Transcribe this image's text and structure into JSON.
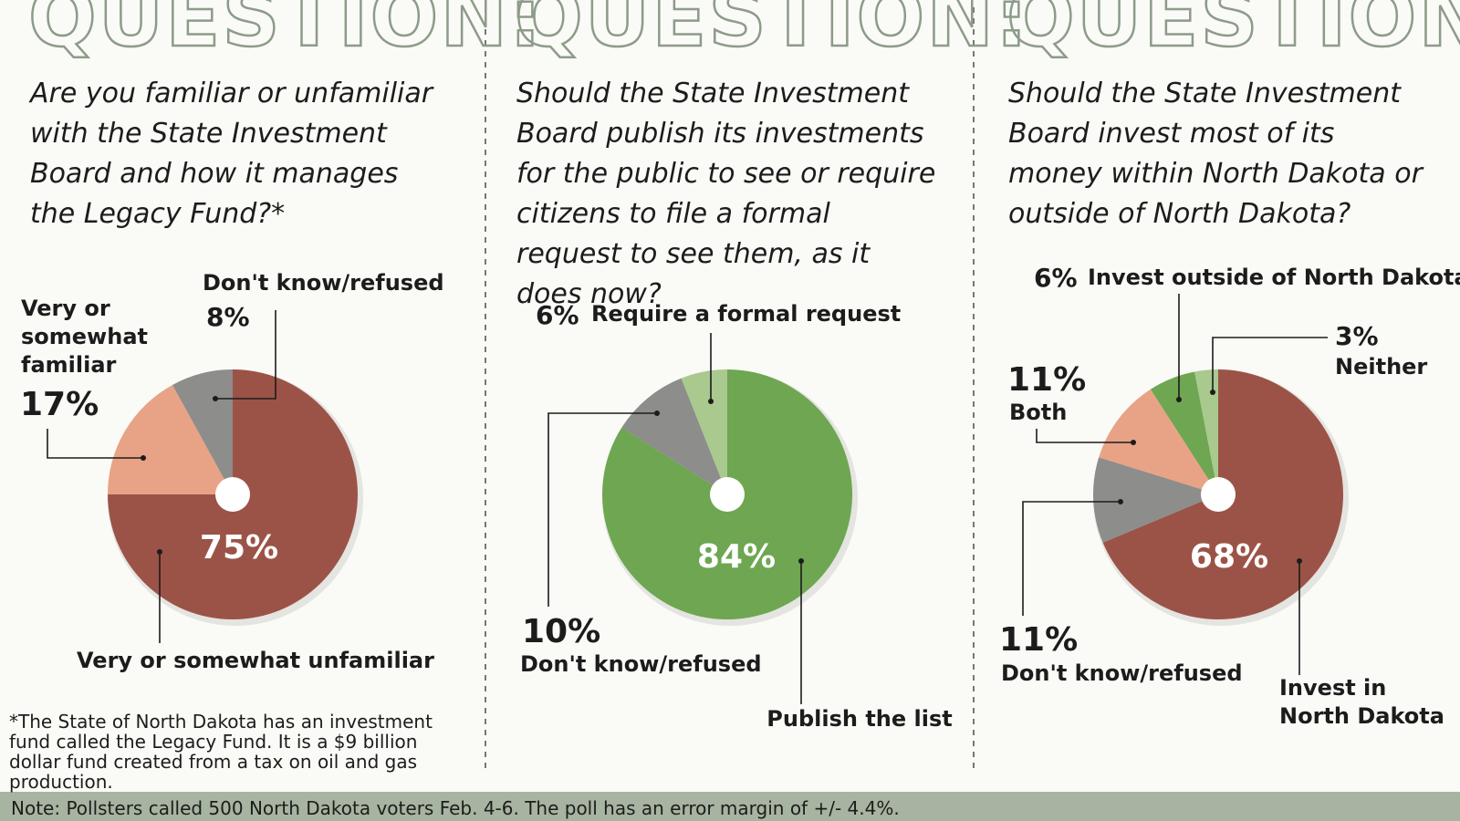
{
  "heading_note": "Note: Pollsters called 500 North Dakota voters Feb. 4-6. The poll has an error margin of +/- 4.4%.",
  "footnote": "*The State of North Dakota has an investment fund called the Legacy Fund. It is a $9 billion dollar fund created from a tax on oil and gas production.",
  "chart_data": [
    {
      "type": "pie",
      "title": "QUESTION:",
      "subtitle": "Are you familiar or unfamiliar with the State Investment Board and how it manages the Legacy Fund?*",
      "categories": [
        "Very or somewhat unfamiliar",
        "Very or somewhat familiar",
        "Don't know/refused"
      ],
      "values": [
        75,
        17,
        8
      ],
      "value_labels": [
        "75%",
        "17%",
        "8%"
      ],
      "colors": [
        "#9c5347",
        "#e8a386",
        "#8d8d8b"
      ]
    },
    {
      "type": "pie",
      "title": "QUESTION:",
      "subtitle": "Should the State Investment Board publish its investments for the public to see or require citizens to file a formal request to see them, as it does now?",
      "categories": [
        "Publish the list",
        "Don't know/refused",
        "Require a formal request"
      ],
      "values": [
        84,
        10,
        6
      ],
      "value_labels": [
        "84%",
        "10%",
        "6%"
      ],
      "colors": [
        "#6ea652",
        "#8d8d8b",
        "#a9c98f"
      ]
    },
    {
      "type": "pie",
      "title": "QUESTION:",
      "subtitle": "Should the State Investment Board invest most of its money within North Dakota or outside of North Dakota?",
      "categories": [
        "Invest in North Dakota",
        "Don't know/refused",
        "Both",
        "Invest outside of North Dakota",
        "Neither"
      ],
      "values": [
        68,
        11,
        11,
        6,
        3
      ],
      "value_labels": [
        "68%",
        "11%",
        "11%",
        "6%",
        "3%"
      ],
      "colors": [
        "#9c5347",
        "#8d8d8b",
        "#e8a386",
        "#6ea652",
        "#a9c98f"
      ]
    }
  ]
}
